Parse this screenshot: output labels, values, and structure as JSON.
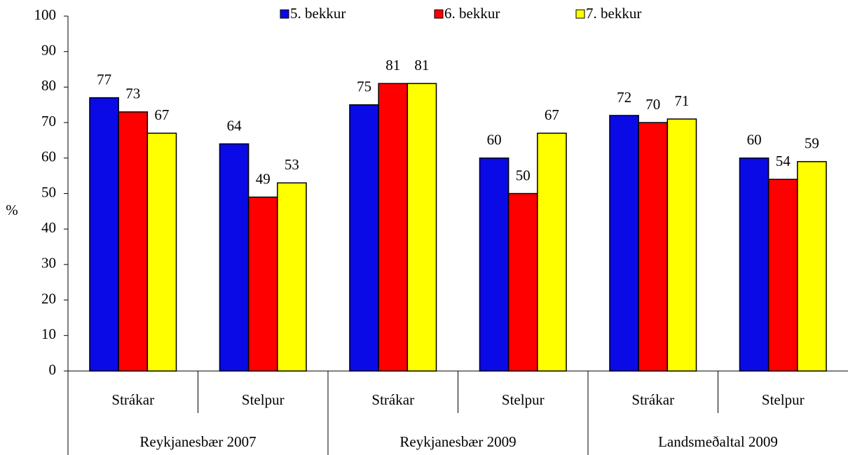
{
  "chart_data": {
    "type": "bar",
    "y_label": "%",
    "categories": [
      "Strákar",
      "Stelpur",
      "Strákar",
      "Stelpur",
      "Strákar",
      "Stelpur"
    ],
    "groups": [
      "Reykjanesbær 2007",
      "Reykjanesbær 2009",
      "Landsmeðaltal 2009"
    ],
    "series": [
      {
        "name": "5. bekkur",
        "color": "#0a0ae6",
        "values": [
          77,
          64,
          75,
          60,
          72,
          60
        ]
      },
      {
        "name": "6. bekkur",
        "color": "#ff0000",
        "values": [
          73,
          49,
          81,
          50,
          70,
          54
        ]
      },
      {
        "name": "7. bekkur",
        "color": "#ffff00",
        "values": [
          67,
          53,
          81,
          67,
          71,
          59
        ]
      }
    ],
    "ylim": [
      0,
      100
    ],
    "yticks": [
      0,
      10,
      20,
      30,
      40,
      50,
      60,
      70,
      80,
      90,
      100
    ],
    "grid": false,
    "legend": "top"
  }
}
